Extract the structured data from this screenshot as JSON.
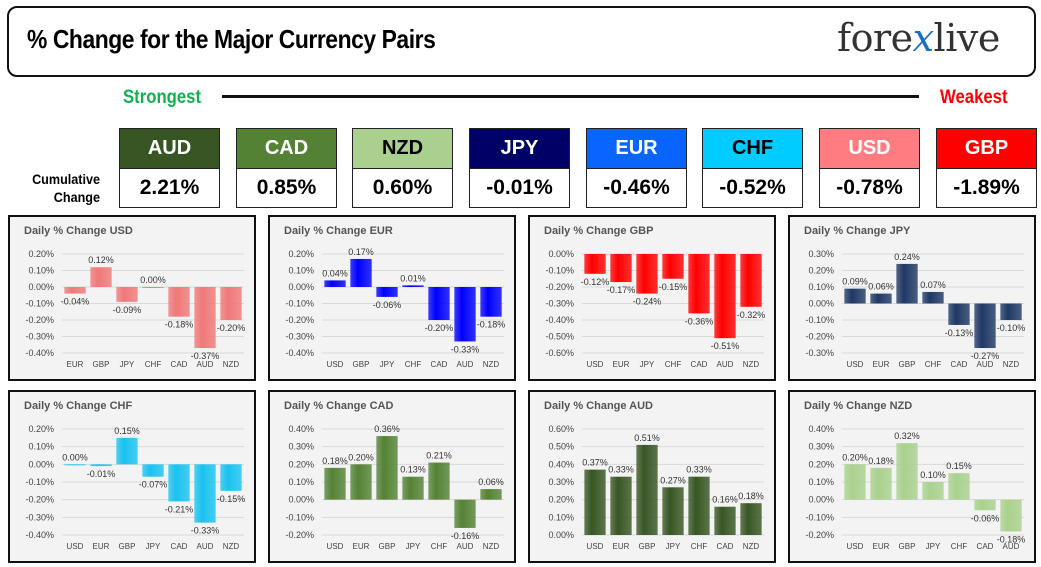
{
  "header": {
    "title": "% Change for the Major Currency Pairs",
    "logo": "forexlive"
  },
  "ranking": {
    "strongest_label": "Strongest",
    "weakest_label": "Weakest",
    "cumulative_label_1": "Cumulative",
    "cumulative_label_2": "Change",
    "currencies": [
      {
        "code": "AUD",
        "value": "2.21%",
        "color": "#375623",
        "text_color": "#ffffff"
      },
      {
        "code": "CAD",
        "value": "0.85%",
        "color": "#548235",
        "text_color": "#ffffff"
      },
      {
        "code": "NZD",
        "value": "0.60%",
        "color": "#a9d08e",
        "text_color": "#000000"
      },
      {
        "code": "JPY",
        "value": "-0.01%",
        "color": "#000066",
        "text_color": "#ffffff"
      },
      {
        "code": "EUR",
        "value": "-0.46%",
        "color": "#0a64ff",
        "text_color": "#ffffff"
      },
      {
        "code": "CHF",
        "value": "-0.52%",
        "color": "#00ccff",
        "text_color": "#000000"
      },
      {
        "code": "USD",
        "value": "-0.78%",
        "color": "#ff7c80",
        "text_color": "#ffffff"
      },
      {
        "code": "GBP",
        "value": "-1.89%",
        "color": "#ff0000",
        "text_color": "#ffffff"
      }
    ]
  },
  "chart_data": [
    {
      "type": "bar",
      "title": "Daily % Change USD",
      "categories": [
        "EUR",
        "GBP",
        "JPY",
        "CHF",
        "CAD",
        "AUD",
        "NZD"
      ],
      "values": [
        -0.04,
        0.12,
        -0.09,
        0.0,
        -0.18,
        -0.37,
        -0.2
      ],
      "labels": [
        "-0.04%",
        "0.12%",
        "-0.09%",
        "0.00%",
        "-0.18%",
        "-0.37%",
        "-0.20%"
      ],
      "ylim": [
        -0.4,
        0.2
      ],
      "yticks": [
        "0.20%",
        "0.10%",
        "0.00%",
        "-0.10%",
        "-0.20%",
        "-0.30%",
        "-0.40%"
      ],
      "color": "#f07878",
      "grid": true
    },
    {
      "type": "bar",
      "title": "Daily % Change EUR",
      "categories": [
        "USD",
        "GBP",
        "JPY",
        "CHF",
        "CAD",
        "AUD",
        "NZD"
      ],
      "values": [
        0.04,
        0.17,
        -0.06,
        0.01,
        -0.2,
        -0.33,
        -0.18
      ],
      "labels": [
        "0.04%",
        "0.17%",
        "-0.06%",
        "0.01%",
        "-0.20%",
        "-0.33%",
        "-0.18%"
      ],
      "ylim": [
        -0.4,
        0.2
      ],
      "yticks": [
        "0.20%",
        "0.10%",
        "0.00%",
        "-0.10%",
        "-0.20%",
        "-0.30%",
        "-0.40%"
      ],
      "color": "#0000ff",
      "grid": true
    },
    {
      "type": "bar",
      "title": "Daily % Change GBP",
      "categories": [
        "USD",
        "EUR",
        "JPY",
        "CHF",
        "CAD",
        "AUD",
        "NZD"
      ],
      "values": [
        -0.12,
        -0.17,
        -0.24,
        -0.15,
        -0.36,
        -0.51,
        -0.32
      ],
      "labels": [
        "-0.12%",
        "-0.17%",
        "-0.24%",
        "-0.15%",
        "-0.36%",
        "-0.51%",
        "-0.32%"
      ],
      "ylim": [
        -0.6,
        0.0
      ],
      "yticks": [
        "0.00%",
        "-0.10%",
        "-0.20%",
        "-0.30%",
        "-0.40%",
        "-0.50%",
        "-0.60%"
      ],
      "color": "#ff0000",
      "grid": true
    },
    {
      "type": "bar",
      "title": "Daily % Change JPY",
      "categories": [
        "USD",
        "EUR",
        "GBP",
        "CHF",
        "CAD",
        "AUD",
        "NZD"
      ],
      "values": [
        0.09,
        0.06,
        0.24,
        0.07,
        -0.13,
        -0.27,
        -0.1
      ],
      "labels": [
        "0.09%",
        "0.06%",
        "0.24%",
        "0.07%",
        "-0.13%",
        "-0.27%",
        "-0.10%"
      ],
      "ylim": [
        -0.3,
        0.3
      ],
      "yticks": [
        "0.30%",
        "0.20%",
        "0.10%",
        "0.00%",
        "-0.10%",
        "-0.20%",
        "-0.30%"
      ],
      "color": "#1f3864",
      "grid": true
    },
    {
      "type": "bar",
      "title": "Daily % Change CHF",
      "categories": [
        "USD",
        "EUR",
        "GBP",
        "JPY",
        "CAD",
        "AUD",
        "NZD"
      ],
      "values": [
        0.0,
        -0.01,
        0.15,
        -0.07,
        -0.21,
        -0.33,
        -0.15
      ],
      "labels": [
        "0.00%",
        "-0.01%",
        "0.15%",
        "-0.07%",
        "-0.21%",
        "-0.33%",
        "-0.15%"
      ],
      "ylim": [
        -0.4,
        0.2
      ],
      "yticks": [
        "0.20%",
        "0.10%",
        "0.00%",
        "-0.10%",
        "-0.20%",
        "-0.30%",
        "-0.40%"
      ],
      "color": "#19c3f0",
      "grid": true
    },
    {
      "type": "bar",
      "title": "Daily % Change CAD",
      "categories": [
        "USD",
        "EUR",
        "GBP",
        "JPY",
        "CHF",
        "AUD",
        "NZD"
      ],
      "values": [
        0.18,
        0.2,
        0.36,
        0.13,
        0.21,
        -0.16,
        0.06
      ],
      "labels": [
        "0.18%",
        "0.20%",
        "0.36%",
        "0.13%",
        "0.21%",
        "-0.16%",
        "0.06%"
      ],
      "ylim": [
        -0.2,
        0.4
      ],
      "yticks": [
        "0.40%",
        "0.30%",
        "0.20%",
        "0.10%",
        "0.00%",
        "-0.10%",
        "-0.20%"
      ],
      "color": "#548235",
      "grid": true
    },
    {
      "type": "bar",
      "title": "Daily % Change AUD",
      "categories": [
        "USD",
        "EUR",
        "GBP",
        "JPY",
        "CHF",
        "CAD",
        "NZD"
      ],
      "values": [
        0.37,
        0.33,
        0.51,
        0.27,
        0.33,
        0.16,
        0.18
      ],
      "labels": [
        "0.37%",
        "0.33%",
        "0.51%",
        "0.27%",
        "0.33%",
        "0.16%",
        "0.18%"
      ],
      "ylim": [
        0.0,
        0.6
      ],
      "yticks": [
        "0.60%",
        "0.50%",
        "0.40%",
        "0.30%",
        "0.20%",
        "0.10%",
        "0.00%"
      ],
      "color": "#375623",
      "grid": true
    },
    {
      "type": "bar",
      "title": "Daily % Change NZD",
      "categories": [
        "USD",
        "EUR",
        "GBP",
        "JPY",
        "CHF",
        "CAD",
        "AUD"
      ],
      "values": [
        0.2,
        0.18,
        0.32,
        0.1,
        0.15,
        -0.06,
        -0.18
      ],
      "labels": [
        "0.20%",
        "0.18%",
        "0.32%",
        "0.10%",
        "0.15%",
        "-0.06%",
        "-0.18%"
      ],
      "ylim": [
        -0.2,
        0.4
      ],
      "yticks": [
        "0.40%",
        "0.30%",
        "0.20%",
        "0.10%",
        "0.00%",
        "-0.10%",
        "-0.20%"
      ],
      "color": "#a9d18e",
      "grid": true
    }
  ]
}
